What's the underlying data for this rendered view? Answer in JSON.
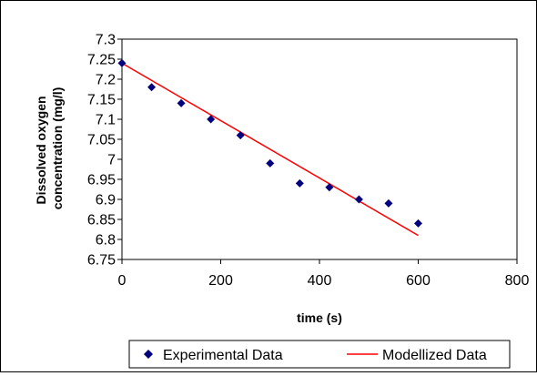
{
  "chart_data": {
    "type": "scatter",
    "title": "",
    "xlabel": "time (s)",
    "ylabel": "Dissolved oxygen concentration (mg/l)",
    "ylabel_lines": [
      "Dissolved oxygen",
      "concentration (mg/l)"
    ],
    "xlim": [
      0,
      800
    ],
    "ylim": [
      6.75,
      7.3
    ],
    "x_ticks": [
      "0",
      "200",
      "400",
      "600",
      "800"
    ],
    "y_ticks": [
      "6.75",
      "6.8",
      "6.85",
      "6.9",
      "6.95",
      "7",
      "7.05",
      "7.1",
      "7.15",
      "7.2",
      "7.25",
      "7.3"
    ],
    "grid": false,
    "legend_position": "bottom",
    "series": [
      {
        "name": "Experimental Data",
        "kind": "marker",
        "marker": "diamond",
        "color": "#00007F",
        "x": [
          0,
          60,
          120,
          180,
          240,
          300,
          360,
          420,
          480,
          540,
          600
        ],
        "y": [
          7.24,
          7.18,
          7.14,
          7.1,
          7.06,
          6.99,
          6.94,
          6.93,
          6.9,
          6.89,
          6.84
        ]
      },
      {
        "name": "Modellized Data",
        "kind": "line",
        "color": "#FF0000",
        "x": [
          0,
          600
        ],
        "y": [
          7.24,
          6.81
        ]
      }
    ]
  }
}
